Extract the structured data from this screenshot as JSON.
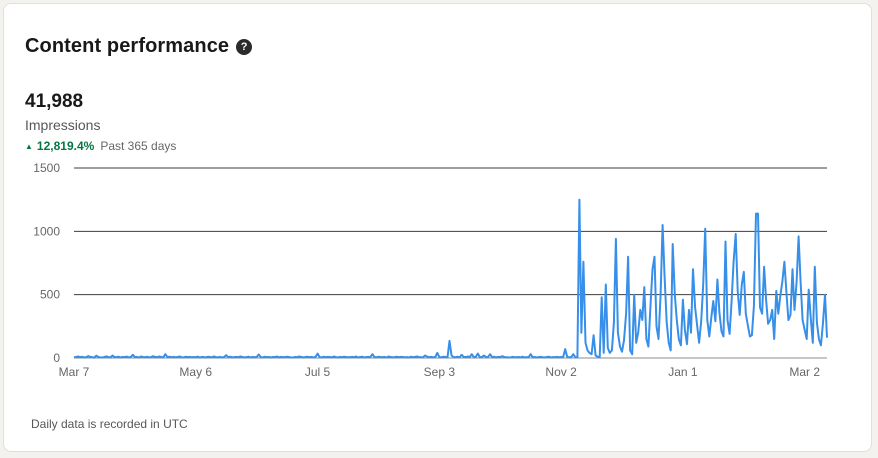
{
  "card": {
    "title": "Content performance",
    "help_icon": "?",
    "metric_value": "41,988",
    "metric_label": "Impressions",
    "change_arrow": "▲",
    "change_value": "12,819.4%",
    "change_period": "Past 365 days",
    "footnote": "Daily data is recorded in UTC"
  },
  "colors": {
    "line": "#378fe9",
    "grid": "#3d3d3d",
    "positive": "#057642"
  },
  "chart_data": {
    "type": "line",
    "xlabel": "",
    "ylabel": "",
    "ylim": [
      0,
      1500
    ],
    "yticks": [
      0,
      500,
      1000,
      1500
    ],
    "xlim": [
      "Mar 7",
      "Mar 2"
    ],
    "xtick_labels": [
      "Mar 7",
      "May 6",
      "Jul 5",
      "Sep 3",
      "Nov 2",
      "Jan 1",
      "Mar 2"
    ],
    "xtick_days": [
      0,
      60,
      120,
      180,
      240,
      300,
      360
    ],
    "grid": true,
    "series": [
      {
        "values": [
          5,
          8,
          12,
          6,
          10,
          4,
          7,
          15,
          9,
          6,
          3,
          18,
          8,
          5,
          4,
          9,
          12,
          7,
          5,
          20,
          6,
          8,
          10,
          4,
          9,
          7,
          11,
          5,
          8,
          25,
          6,
          9,
          4,
          12,
          8,
          6,
          10,
          5,
          7,
          14,
          9,
          6,
          12,
          8,
          4,
          30,
          7,
          10,
          6,
          9,
          5,
          8,
          12,
          6,
          4,
          10,
          7,
          9,
          5,
          8,
          6,
          11,
          4,
          9,
          7,
          5,
          10,
          8,
          6,
          12,
          7,
          5,
          9,
          4,
          8,
          22,
          6,
          10,
          5,
          7,
          9,
          6,
          12,
          8,
          5,
          7,
          10,
          4,
          9,
          6,
          8,
          28,
          7,
          5,
          10,
          6,
          9,
          4,
          8,
          7,
          12,
          5,
          9,
          6,
          8,
          10,
          7,
          5,
          4,
          9,
          6,
          12,
          8,
          5,
          7,
          10,
          6,
          9,
          4,
          8,
          35,
          7,
          5,
          10,
          6,
          9,
          8,
          5,
          12,
          7,
          4,
          9,
          6,
          10,
          8,
          5,
          7,
          9,
          6,
          12,
          4,
          8,
          10,
          5,
          7,
          9,
          6,
          30,
          8,
          5,
          10,
          7,
          6,
          9,
          4,
          12,
          8,
          5,
          7,
          10,
          6,
          9,
          8,
          5,
          7,
          4,
          10,
          6,
          9,
          12,
          8,
          5,
          7,
          20,
          10,
          6,
          9,
          5,
          8,
          40,
          7,
          6,
          10,
          9,
          5,
          135,
          20,
          8,
          6,
          10,
          5,
          25,
          9,
          7,
          12,
          8,
          30,
          6,
          10,
          35,
          5,
          9,
          20,
          7,
          8,
          30,
          6,
          10,
          5,
          9,
          7,
          15,
          8,
          6,
          5,
          4,
          9,
          7,
          6,
          8,
          5,
          10,
          4,
          7,
          6,
          30,
          5,
          8,
          4,
          7,
          9,
          6,
          5,
          8,
          10,
          4,
          7,
          6,
          9,
          5,
          8,
          6,
          70,
          10,
          5,
          8,
          30,
          6,
          4,
          1250,
          200,
          760,
          120,
          60,
          40,
          30,
          180,
          20,
          10,
          5,
          480,
          40,
          580,
          80,
          40,
          60,
          280,
          940,
          200,
          90,
          50,
          140,
          350,
          800,
          60,
          30,
          500,
          120,
          200,
          380,
          300,
          560,
          150,
          90,
          400,
          700,
          800,
          250,
          150,
          500,
          1050,
          640,
          280,
          120,
          60,
          900,
          500,
          300,
          150,
          100,
          460,
          220,
          110,
          380,
          200,
          700,
          400,
          260,
          120,
          290,
          580,
          1020,
          300,
          170,
          320,
          450,
          290,
          620,
          360,
          210,
          170,
          920,
          300,
          190,
          450,
          760,
          980,
          530,
          340,
          580,
          680,
          350,
          260,
          170,
          180,
          410,
          1140,
          1140,
          400,
          350,
          720,
          460,
          270,
          300,
          380,
          150,
          530,
          350,
          490,
          600,
          760,
          520,
          300,
          340,
          700,
          380,
          600,
          960,
          600,
          300,
          220,
          150,
          540,
          310,
          120,
          720,
          280,
          150,
          100,
          270,
          500,
          160
        ]
      }
    ]
  }
}
